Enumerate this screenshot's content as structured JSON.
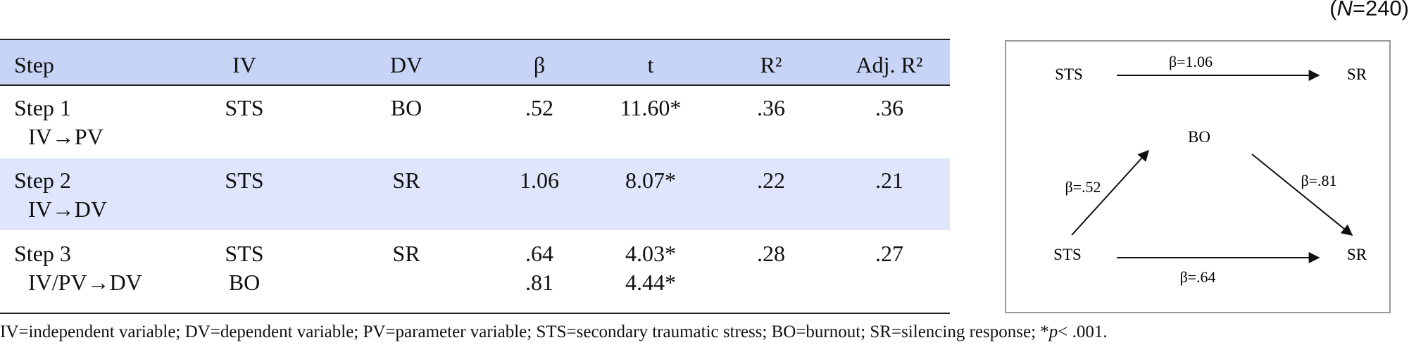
{
  "note": {
    "open": "(",
    "italic": "N",
    "rest": "=240)"
  },
  "table": {
    "header": [
      "Step",
      "IV",
      "DV",
      "β",
      "t",
      "R²",
      "Adj. R²"
    ],
    "rows": [
      [
        [
          "Step 1",
          "IV→PV"
        ],
        [
          "STS"
        ],
        [
          "BO"
        ],
        [
          ".52"
        ],
        [
          "11.60*"
        ],
        [
          ".36"
        ],
        [
          ".36"
        ]
      ],
      [
        [
          "Step 2",
          "IV→DV"
        ],
        [
          "STS"
        ],
        [
          "SR"
        ],
        [
          "1.06"
        ],
        [
          "8.07*"
        ],
        [
          ".22"
        ],
        [
          ".21"
        ]
      ],
      [
        [
          "Step 3",
          "IV/PV→DV"
        ],
        [
          "STS",
          "BO"
        ],
        [
          "SR"
        ],
        [
          ".64",
          ".81"
        ],
        [
          "4.03*",
          "4.44*"
        ],
        [
          ".28"
        ],
        [
          ".27"
        ]
      ]
    ]
  },
  "footnote": {
    "text": "IV=independent variable; DV=dependent variable; PV=parameter variable; STS=secondary traumatic stress; BO=burnout; SR=silencing response; *",
    "italic": "p",
    "rest": "< .001."
  },
  "diagram": {
    "nodes": [
      "STS",
      "SR",
      "BO",
      "STS",
      "SR"
    ],
    "edges": [
      "β=1.06",
      "β=.52",
      "β=.81",
      "β=.64"
    ]
  }
}
